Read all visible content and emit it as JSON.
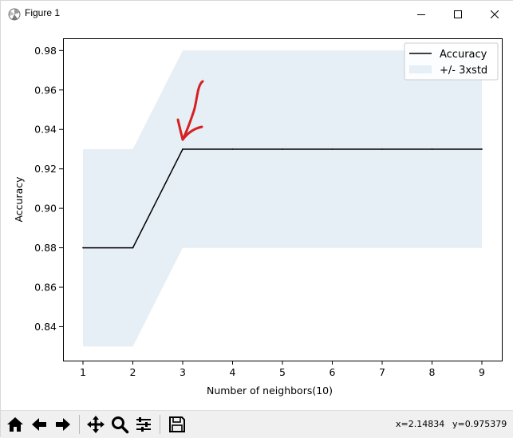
{
  "window": {
    "title": "Figure 1",
    "icon": "matplotlib-figure-icon"
  },
  "chart_data": {
    "type": "line",
    "title": "",
    "xlabel": "Number of neighbors(10)",
    "ylabel": "Accuracy",
    "x": [
      1,
      2,
      3,
      4,
      5,
      6,
      7,
      8,
      9
    ],
    "xlim": [
      0.6,
      9.4
    ],
    "ylim": [
      0.8228,
      0.9862
    ],
    "xticks": [
      "1",
      "2",
      "3",
      "4",
      "5",
      "6",
      "7",
      "8",
      "9"
    ],
    "yticks": [
      "0.84",
      "0.86",
      "0.88",
      "0.90",
      "0.92",
      "0.94",
      "0.96",
      "0.98"
    ],
    "ytick_values": [
      0.84,
      0.86,
      0.88,
      0.9,
      0.92,
      0.94,
      0.96,
      0.98
    ],
    "series": [
      {
        "name": "Accuracy",
        "values": [
          0.88,
          0.88,
          0.93,
          0.93,
          0.93,
          0.93,
          0.93,
          0.93,
          0.93
        ],
        "color": "#000000"
      }
    ],
    "band": {
      "name": "+/- 3xstd",
      "lower": [
        0.83,
        0.83,
        0.88,
        0.88,
        0.88,
        0.88,
        0.88,
        0.88,
        0.88
      ],
      "upper": [
        0.93,
        0.93,
        0.98,
        0.98,
        0.98,
        0.98,
        0.98,
        0.98,
        0.98
      ],
      "color": "#e6eef6"
    },
    "legend_position": "top-right",
    "grid": false,
    "annotation": {
      "type": "hand-drawn-arrow",
      "color": "#d62121",
      "points_to_x": 3
    }
  },
  "toolbar": {
    "home_icon": "home-icon",
    "back_icon": "back-arrow-icon",
    "forward_icon": "forward-arrow-icon",
    "pan_icon": "pan-move-icon",
    "zoom_icon": "zoom-magnifier-icon",
    "configure_icon": "configure-subplots-icon",
    "save_icon": "save-floppy-icon",
    "coord_x": "x=2.14834",
    "coord_y": "y=0.975379"
  }
}
